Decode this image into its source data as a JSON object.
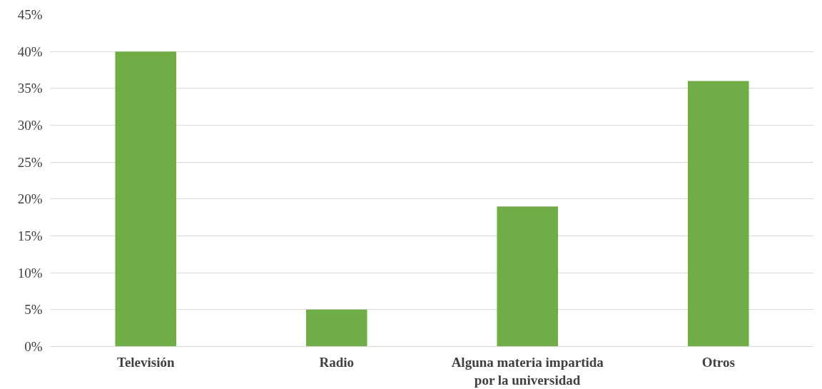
{
  "chart_data": {
    "type": "bar",
    "categories": [
      "Televisión",
      "Radio",
      "Alguna materia impartida por la universidad",
      "Otros"
    ],
    "values": [
      40,
      5,
      19,
      36
    ],
    "color": "#70ad47",
    "ylim": [
      0,
      45
    ],
    "yticks": [
      {
        "value": 0,
        "label": "0%"
      },
      {
        "value": 5,
        "label": "5%"
      },
      {
        "value": 10,
        "label": "10%"
      },
      {
        "value": 15,
        "label": "15%"
      },
      {
        "value": 20,
        "label": "20%"
      },
      {
        "value": 25,
        "label": "25%"
      },
      {
        "value": 30,
        "label": "30%"
      },
      {
        "value": 35,
        "label": "35%"
      },
      {
        "value": 40,
        "label": "40%"
      },
      {
        "value": 45,
        "label": "45%"
      }
    ],
    "grid": "y"
  }
}
